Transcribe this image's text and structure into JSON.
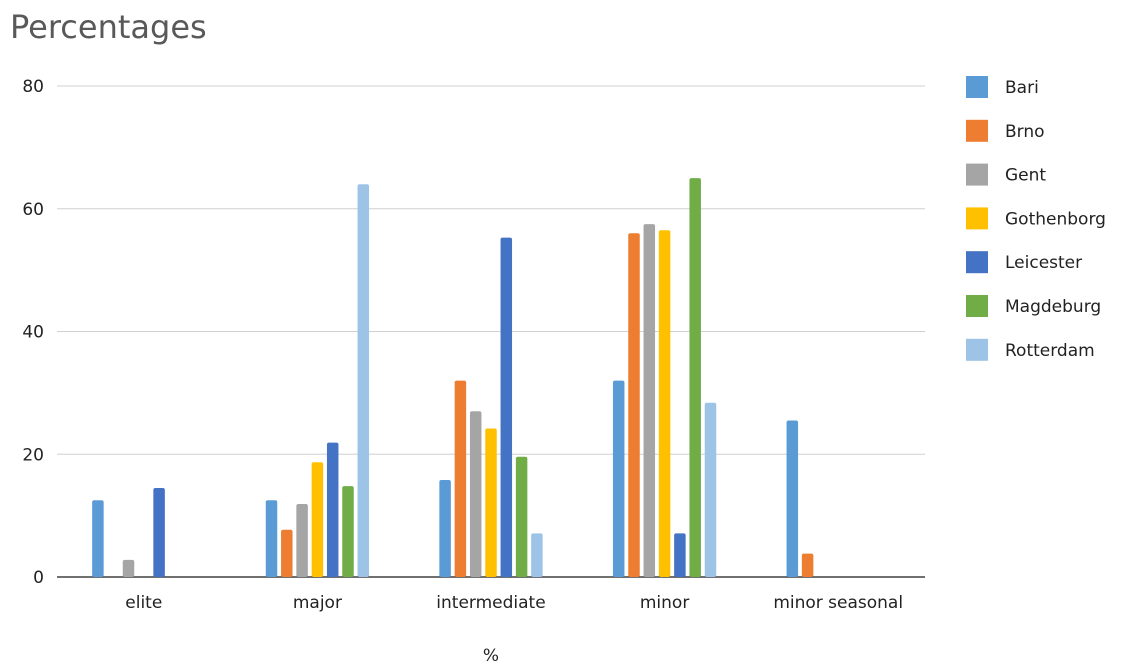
{
  "chart_data": {
    "type": "bar",
    "title": "Percentages",
    "xlabel": "%",
    "ylabel": "",
    "ylim": [
      0,
      80
    ],
    "yticks": [
      0,
      20,
      40,
      60,
      80
    ],
    "grid": true,
    "legend_position": "right",
    "categories": [
      "elite",
      "major",
      "intermediate",
      "minor",
      "minor seasonal"
    ],
    "series": [
      {
        "name": "Bari",
        "color": "#5B9BD5",
        "values": [
          12.5,
          12.5,
          15.8,
          32,
          25.5
        ]
      },
      {
        "name": "Brno",
        "color": "#ED7D31",
        "values": [
          0,
          7.7,
          32,
          56,
          3.8
        ]
      },
      {
        "name": "Gent",
        "color": "#A5A5A5",
        "values": [
          2.8,
          11.9,
          27,
          57.5,
          0
        ]
      },
      {
        "name": "Gothenborg",
        "color": "#FFC000",
        "values": [
          0,
          18.7,
          24.2,
          56.5,
          0
        ]
      },
      {
        "name": "Leicester",
        "color": "#4472C4",
        "values": [
          14.5,
          21.9,
          55.3,
          7.1,
          0
        ]
      },
      {
        "name": "Magdeburg",
        "color": "#70AD47",
        "values": [
          0,
          14.8,
          19.6,
          65,
          0
        ]
      },
      {
        "name": "Rotterdam",
        "color": "#9DC3E6",
        "values": [
          0,
          64,
          7.1,
          28.4,
          0
        ]
      }
    ]
  }
}
